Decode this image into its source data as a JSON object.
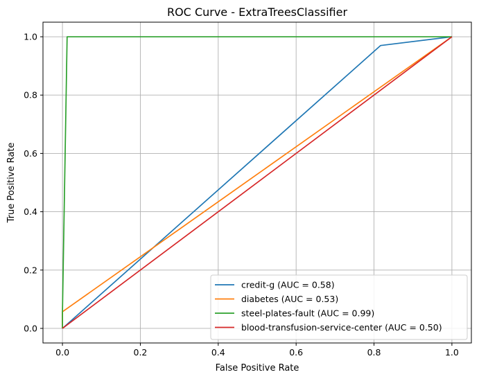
{
  "chart_data": {
    "type": "line",
    "title": "ROC Curve - ExtraTreesClassifier",
    "xlabel": "False Positive Rate",
    "ylabel": "True Positive Rate",
    "xlim": [
      -0.05,
      1.05
    ],
    "ylim": [
      -0.05,
      1.05
    ],
    "xticks": [
      0.0,
      0.2,
      0.4,
      0.6,
      0.8,
      1.0
    ],
    "xtick_labels": [
      "0.0",
      "0.2",
      "0.4",
      "0.6",
      "0.8",
      "1.0"
    ],
    "yticks": [
      0.0,
      0.2,
      0.4,
      0.6,
      0.8,
      1.0
    ],
    "ytick_labels": [
      "0.0",
      "0.2",
      "0.4",
      "0.6",
      "0.8",
      "1.0"
    ],
    "grid": true,
    "legend_position": "lower-right",
    "series": [
      {
        "name": "credit-g (AUC = 0.58)",
        "color": "#1f77b4",
        "x": [
          0.0,
          0.817,
          1.0
        ],
        "y": [
          0.0,
          0.97,
          1.0
        ]
      },
      {
        "name": "diabetes (AUC = 0.53)",
        "color": "#ff7f0e",
        "x": [
          0.0,
          0.0,
          1.0
        ],
        "y": [
          0.0,
          0.057,
          1.0
        ]
      },
      {
        "name": "steel-plates-fault (AUC = 0.99)",
        "color": "#2ca02c",
        "x": [
          0.0,
          0.0,
          0.012,
          1.0
        ],
        "y": [
          0.0,
          0.055,
          1.0,
          1.0
        ]
      },
      {
        "name": "blood-transfusion-service-center (AUC = 0.50)",
        "color": "#d62728",
        "x": [
          0.0,
          1.0
        ],
        "y": [
          0.0,
          1.0
        ]
      }
    ]
  }
}
